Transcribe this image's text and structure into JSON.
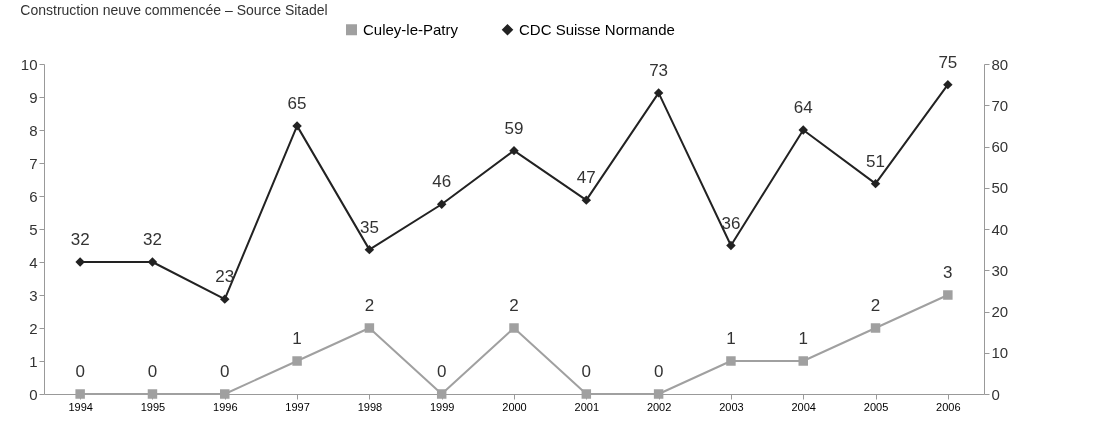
{
  "chart_data": {
    "type": "line",
    "title": "Construction neuve commencée – Source Sitadel",
    "categories": [
      "1994",
      "1995",
      "1996",
      "1997",
      "1998",
      "1999",
      "2000",
      "2001",
      "2002",
      "2003",
      "2004",
      "2005",
      "2006"
    ],
    "series": [
      {
        "name": "Culey-le-Patry",
        "color": "#a0a0a0",
        "marker": "square",
        "values": [
          0,
          0,
          0,
          1,
          2,
          0,
          2,
          0,
          0,
          1,
          1,
          2,
          3
        ]
      },
      {
        "name": "CDC Suisse Normande",
        "color": "#222222",
        "marker": "diamond",
        "axis": "y2",
        "values": [
          32,
          32,
          23,
          65,
          35,
          46,
          59,
          47,
          73,
          36,
          64,
          51,
          75
        ]
      }
    ],
    "ylim": [
      0,
      10
    ],
    "yticks": [
      0,
      1,
      2,
      3,
      4,
      5,
      6,
      7,
      8,
      9,
      10
    ],
    "y2lim": [
      0,
      80
    ],
    "y2ticks": [
      0,
      10,
      20,
      30,
      40,
      50,
      60,
      70,
      80
    ],
    "data_labels": true,
    "grid": false,
    "legend": "top"
  }
}
